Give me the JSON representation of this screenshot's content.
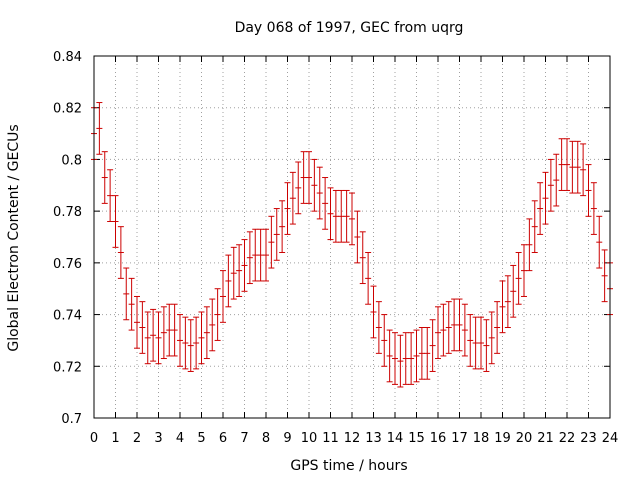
{
  "chart_data": {
    "type": "scatter",
    "title": "Day 068 of 1997, GEC from uqrg",
    "xlabel": "GPS time / hours",
    "ylabel": "Global Electron Content / GECUs",
    "xlim": [
      0,
      24
    ],
    "ylim": [
      0.7,
      0.84
    ],
    "xticks": [
      "0",
      "1",
      "2",
      "3",
      "4",
      "5",
      "6",
      "7",
      "8",
      "9",
      "10",
      "11",
      "12",
      "13",
      "14",
      "15",
      "16",
      "17",
      "18",
      "19",
      "20",
      "21",
      "22",
      "23",
      "24"
    ],
    "yticks": [
      "0.7",
      "0.72",
      "0.74",
      "0.76",
      "0.78",
      "0.8",
      "0.82",
      "0.84"
    ],
    "grid": true,
    "series_color": "#cc0000",
    "series": [
      {
        "name": "GEC",
        "x": [
          0.0,
          0.25,
          0.5,
          0.75,
          1.0,
          1.25,
          1.5,
          1.75,
          2.0,
          2.25,
          2.5,
          2.75,
          3.0,
          3.25,
          3.5,
          3.75,
          4.0,
          4.25,
          4.5,
          4.75,
          5.0,
          5.25,
          5.5,
          5.75,
          6.0,
          6.25,
          6.5,
          6.75,
          7.0,
          7.25,
          7.5,
          7.75,
          8.0,
          8.25,
          8.5,
          8.75,
          9.0,
          9.25,
          9.5,
          9.75,
          10.0,
          10.25,
          10.5,
          10.75,
          11.0,
          11.25,
          11.5,
          11.75,
          12.0,
          12.25,
          12.5,
          12.75,
          13.0,
          13.25,
          13.5,
          13.75,
          14.0,
          14.25,
          14.5,
          14.75,
          15.0,
          15.25,
          15.5,
          15.75,
          16.0,
          16.25,
          16.5,
          16.75,
          17.0,
          17.25,
          17.5,
          17.75,
          18.0,
          18.25,
          18.5,
          18.75,
          19.0,
          19.25,
          19.5,
          19.75,
          20.0,
          20.25,
          20.5,
          20.75,
          21.0,
          21.25,
          21.5,
          21.75,
          22.0,
          22.25,
          22.5,
          22.75,
          23.0,
          23.25,
          23.5,
          23.75,
          24.0
        ],
        "y": [
          0.81,
          0.812,
          0.793,
          0.786,
          0.776,
          0.764,
          0.748,
          0.744,
          0.737,
          0.735,
          0.731,
          0.732,
          0.731,
          0.733,
          0.734,
          0.734,
          0.73,
          0.729,
          0.728,
          0.729,
          0.731,
          0.733,
          0.736,
          0.74,
          0.747,
          0.753,
          0.756,
          0.757,
          0.759,
          0.762,
          0.763,
          0.763,
          0.763,
          0.768,
          0.771,
          0.774,
          0.781,
          0.785,
          0.789,
          0.793,
          0.793,
          0.79,
          0.787,
          0.783,
          0.779,
          0.778,
          0.778,
          0.778,
          0.777,
          0.77,
          0.762,
          0.754,
          0.741,
          0.735,
          0.73,
          0.724,
          0.723,
          0.722,
          0.723,
          0.723,
          0.724,
          0.725,
          0.725,
          0.728,
          0.733,
          0.734,
          0.735,
          0.736,
          0.736,
          0.734,
          0.73,
          0.729,
          0.729,
          0.728,
          0.731,
          0.735,
          0.743,
          0.745,
          0.749,
          0.754,
          0.757,
          0.767,
          0.774,
          0.781,
          0.785,
          0.79,
          0.792,
          0.798,
          0.798,
          0.797,
          0.797,
          0.796,
          0.788,
          0.781,
          0.768,
          0.755,
          0.75
        ],
        "err": [
          0.01,
          0.01,
          0.01,
          0.01,
          0.01,
          0.01,
          0.01,
          0.01,
          0.01,
          0.01,
          0.01,
          0.01,
          0.01,
          0.01,
          0.01,
          0.01,
          0.01,
          0.01,
          0.01,
          0.01,
          0.01,
          0.01,
          0.01,
          0.01,
          0.01,
          0.01,
          0.01,
          0.01,
          0.01,
          0.01,
          0.01,
          0.01,
          0.01,
          0.01,
          0.01,
          0.01,
          0.01,
          0.01,
          0.01,
          0.01,
          0.01,
          0.01,
          0.01,
          0.01,
          0.01,
          0.01,
          0.01,
          0.01,
          0.01,
          0.01,
          0.01,
          0.01,
          0.01,
          0.01,
          0.01,
          0.01,
          0.01,
          0.01,
          0.01,
          0.01,
          0.01,
          0.01,
          0.01,
          0.01,
          0.01,
          0.01,
          0.01,
          0.01,
          0.01,
          0.01,
          0.01,
          0.01,
          0.01,
          0.01,
          0.01,
          0.01,
          0.01,
          0.01,
          0.01,
          0.01,
          0.01,
          0.01,
          0.01,
          0.01,
          0.01,
          0.01,
          0.01,
          0.01,
          0.01,
          0.01,
          0.01,
          0.01,
          0.01,
          0.01,
          0.01,
          0.01,
          0.01
        ]
      }
    ]
  }
}
